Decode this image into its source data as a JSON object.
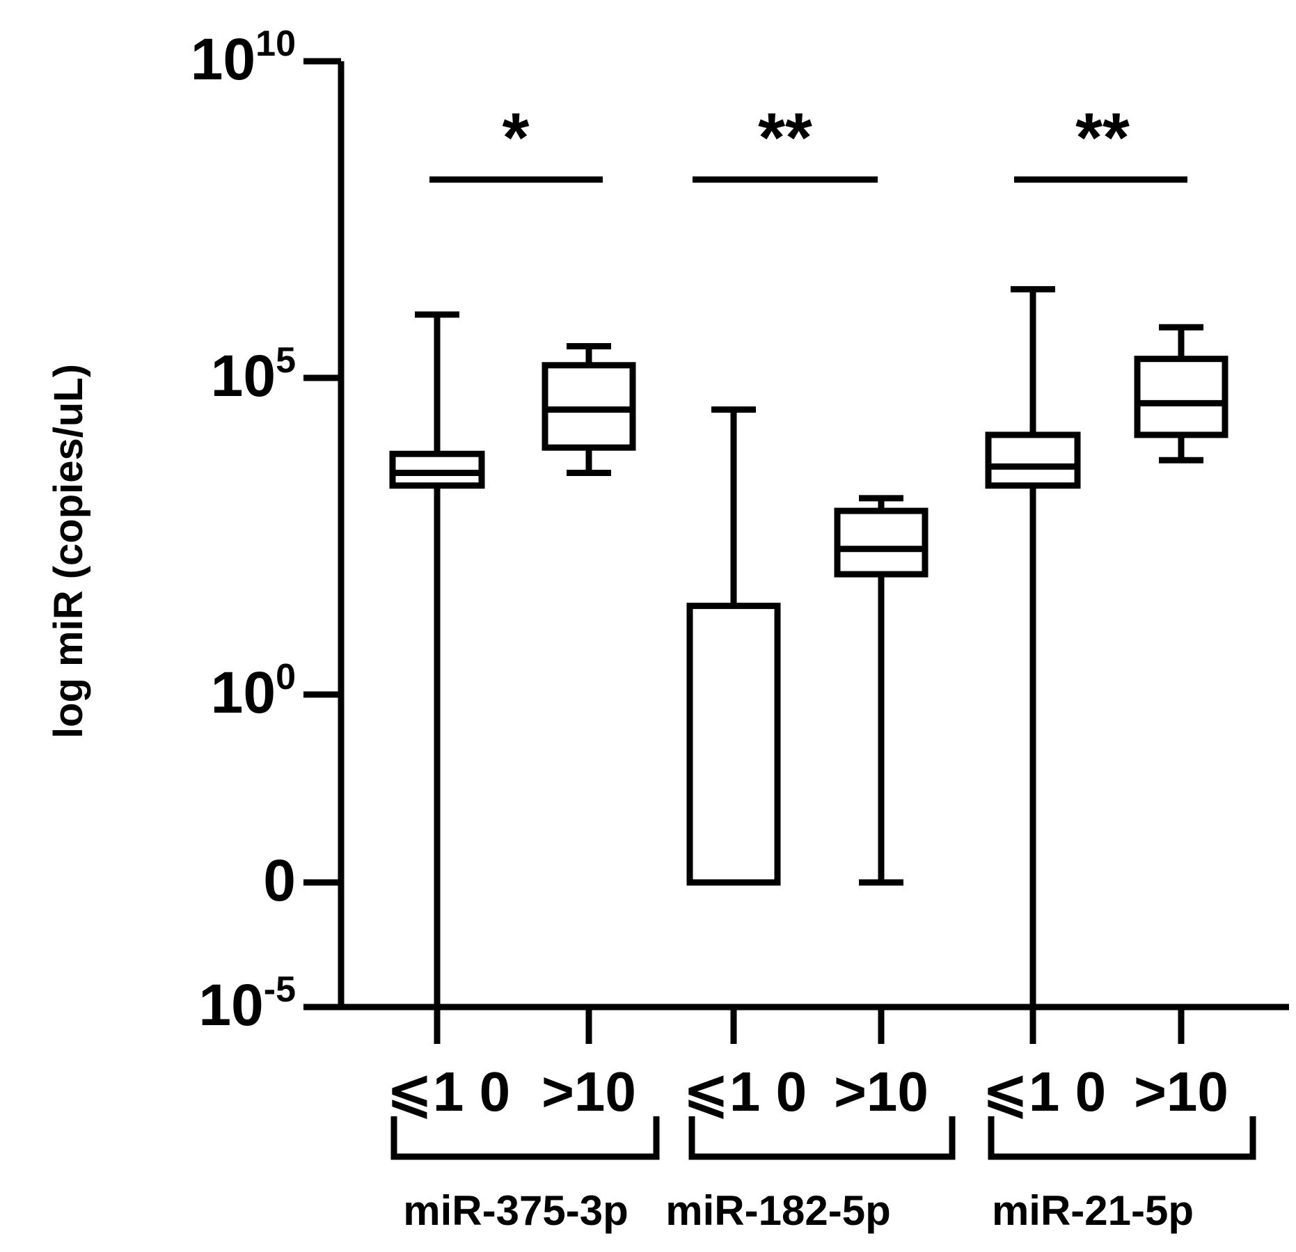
{
  "chart_data": {
    "type": "box",
    "ylabel": "log miR (copies/uL)",
    "yscale": "log (segmented: 0 shown between 10^0 and 10^-5)",
    "ylim": [
      "10^-5",
      "10^10"
    ],
    "y_ticks": [
      {
        "base": "10",
        "exp": "10",
        "value": 10
      },
      {
        "base": "10",
        "exp": "5",
        "value": 5
      },
      {
        "base": "10",
        "exp": "0",
        "value": 0
      },
      {
        "base": "0",
        "exp": "",
        "value": -3
      },
      {
        "base": "10",
        "exp": "-5",
        "value": -5
      }
    ],
    "groups": [
      {
        "name": "miR-375-3p",
        "significance": "*",
        "boxes": [
          {
            "category": "⩽1 0",
            "min": -5,
            "q1": 3.3,
            "median": 3.5,
            "q3": 3.8,
            "max": 6.0
          },
          {
            "category": ">10",
            "min": 3.5,
            "q1": 3.9,
            "median": 4.5,
            "q3": 5.2,
            "max": 5.5
          }
        ]
      },
      {
        "name": "miR-182-5p",
        "significance": "**",
        "boxes": [
          {
            "category": "⩽1 0",
            "min": -3,
            "q1": -3,
            "median": -3,
            "q3": 1.4,
            "max": 4.5
          },
          {
            "category": ">10",
            "min": -3,
            "q1": 1.9,
            "median": 2.3,
            "q3": 2.9,
            "max": 3.1
          }
        ]
      },
      {
        "name": "miR-21-5p",
        "significance": "**",
        "boxes": [
          {
            "category": "⩽1 0",
            "min": -5,
            "q1": 3.3,
            "median": 3.6,
            "q3": 4.1,
            "max": 6.4
          },
          {
            "category": ">10",
            "min": 3.7,
            "q1": 4.1,
            "median": 4.6,
            "q3": 5.3,
            "max": 5.8
          }
        ]
      }
    ],
    "grid": false,
    "legend": "none"
  }
}
